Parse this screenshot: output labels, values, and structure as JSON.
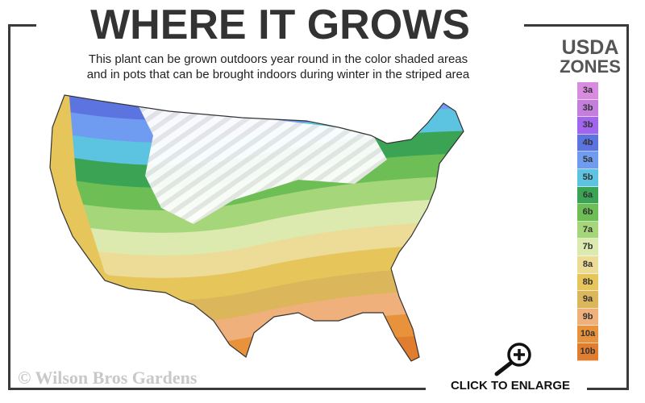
{
  "header": {
    "title": "WHERE IT GROWS",
    "subtitle_line1": "This plant can be grown outdoors year round in the color shaded areas",
    "subtitle_line2": "and in pots that can be brought indoors during winter in the striped area"
  },
  "legend": {
    "title_line1": "USDA",
    "title_line2": "ZONES",
    "zones": [
      {
        "label": "3a",
        "color": "#d98be0"
      },
      {
        "label": "3b",
        "color": "#c47fdc"
      },
      {
        "label": "3b",
        "color": "#a266ee"
      },
      {
        "label": "4b",
        "color": "#5c74e0"
      },
      {
        "label": "5a",
        "color": "#6f9bf0"
      },
      {
        "label": "5b",
        "color": "#5cc3e0"
      },
      {
        "label": "6a",
        "color": "#3aa454"
      },
      {
        "label": "6b",
        "color": "#6cbe55"
      },
      {
        "label": "7a",
        "color": "#a6d67a"
      },
      {
        "label": "7b",
        "color": "#dceab0"
      },
      {
        "label": "8a",
        "color": "#ecdc98"
      },
      {
        "label": "8b",
        "color": "#e6c65a"
      },
      {
        "label": "9a",
        "color": "#dcb65a"
      },
      {
        "label": "9b",
        "color": "#f0b07c"
      },
      {
        "label": "10a",
        "color": "#e8923c"
      },
      {
        "label": "10b",
        "color": "#e07d2e"
      }
    ]
  },
  "watermark": "© Wilson Bros Gardens",
  "enlarge": {
    "label": "CLICK TO ENLARGE",
    "icon": "zoom-in-magnifier-icon"
  }
}
